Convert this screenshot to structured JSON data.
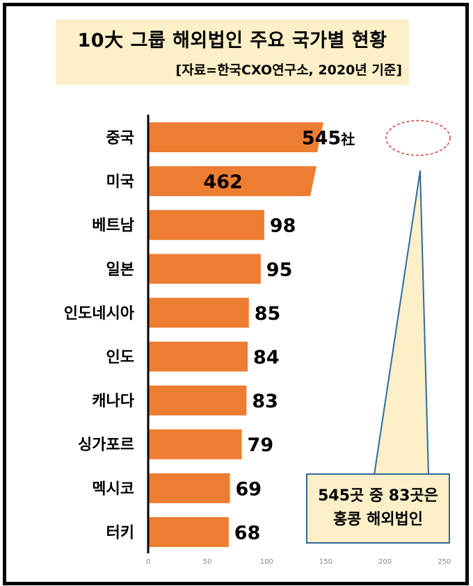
{
  "title": "10大 그룹 해외법인 주요 국가별 현황",
  "source": "[자료=한국CXO연구소, 2020년 기준]",
  "callout": {
    "line1": "545곳 중 83곳은",
    "line2": "홍콩 해외법인"
  },
  "unit_suffix": "社",
  "colors": {
    "bar": "#ed7d31",
    "callout_fill": "#fdf0c8",
    "callout_border": "#2e6a9a",
    "ellipse": "#d83a3a"
  },
  "chart_data": {
    "type": "bar",
    "orientation": "horizontal",
    "categories": [
      "중국",
      "미국",
      "베트남",
      "일본",
      "인도네시아",
      "인도",
      "캐나다",
      "싱가포르",
      "멕시코",
      "터키"
    ],
    "values": [
      545,
      462,
      98,
      95,
      85,
      84,
      83,
      79,
      69,
      68
    ],
    "value_labels": [
      "545",
      "462",
      "98",
      "95",
      "85",
      "84",
      "83",
      "79",
      "69",
      "68"
    ],
    "xlim": [
      0,
      250
    ],
    "xticks": [
      0,
      50,
      100,
      150,
      200,
      250
    ],
    "axis_break": true,
    "grid": false,
    "legend": "none"
  }
}
